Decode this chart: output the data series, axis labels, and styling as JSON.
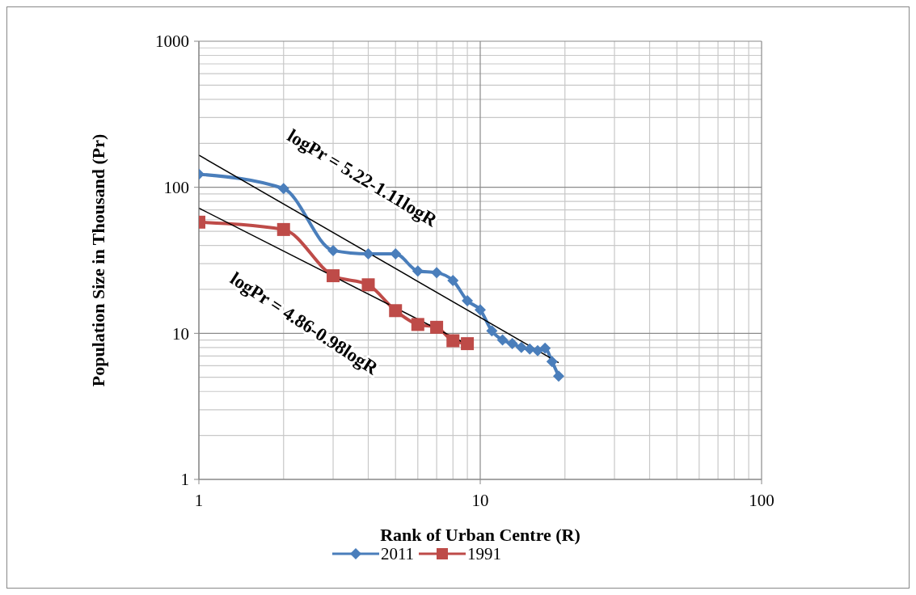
{
  "chart_data": {
    "type": "line",
    "xlabel": "Rank of Urban Centre (R)",
    "ylabel": "Population Size in Thousand (Pr)",
    "log": "xy",
    "xlim": [
      1,
      100
    ],
    "xticks": [
      1,
      10,
      100
    ],
    "ylim": [
      1,
      1000
    ],
    "yticks": [
      1,
      10,
      100,
      1000
    ],
    "grid": true,
    "legend": "bottom",
    "line_style": "solid",
    "annotations": [
      "logPr = 5.22-1.11logR",
      "logPr = 4.86-0.98logR"
    ],
    "series": [
      {
        "name": "2011",
        "color": "#4a7ebb",
        "marker": "diamond",
        "x": [
          1,
          2,
          3,
          4,
          5,
          6,
          7,
          8,
          9,
          10,
          11,
          12,
          13,
          14,
          15,
          16,
          17,
          18,
          19
        ],
        "values": [
          123,
          98,
          36.9,
          35,
          35,
          26.7,
          26,
          23,
          16.7,
          14.5,
          10.4,
          9,
          8.5,
          8,
          7.8,
          7.6,
          7.9,
          6.4,
          5.1
        ]
      },
      {
        "name": "1991",
        "color": "#be4b48",
        "marker": "square",
        "x": [
          1,
          2,
          3,
          4,
          5,
          6,
          7,
          8,
          9
        ],
        "values": [
          57.7,
          51.4,
          24.8,
          21.5,
          14.3,
          11.5,
          11,
          8.9,
          8.5
        ]
      },
      {
        "type": "line",
        "color": "#000000",
        "marker": "none",
        "x": [
          1,
          19
        ],
        "values": [
          166,
          6.3
        ]
      },
      {
        "type": "line",
        "color": "#000000",
        "marker": "none",
        "x": [
          1,
          9
        ],
        "values": [
          72,
          8.4
        ]
      }
    ]
  }
}
